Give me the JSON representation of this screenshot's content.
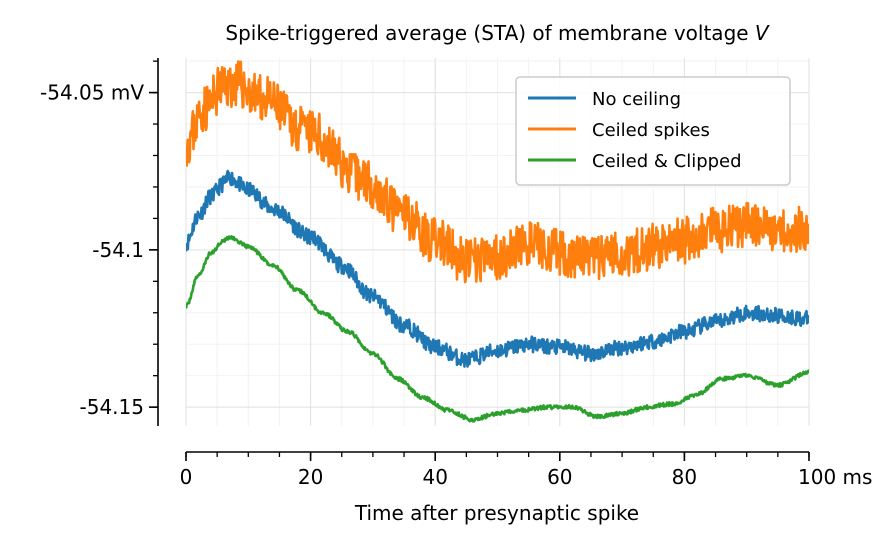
{
  "chart_data": {
    "type": "line",
    "title_main": "Spike-triggered average (STA) of membrane voltage ",
    "title_var": "V",
    "xlabel": "Time after presynaptic spike",
    "ylabel": "",
    "xlim": [
      0,
      100
    ],
    "ylim": [
      -54.156,
      -54.039
    ],
    "grid": true,
    "legend_position": "upper right",
    "x_ticks": [
      {
        "value": 0,
        "label": "0"
      },
      {
        "value": 20,
        "label": "20"
      },
      {
        "value": 40,
        "label": "40"
      },
      {
        "value": 60,
        "label": "60"
      },
      {
        "value": 80,
        "label": "80"
      },
      {
        "value": 100,
        "label": "100 ms"
      }
    ],
    "y_ticks": [
      {
        "value": -54.05,
        "label": "-54.05 mV"
      },
      {
        "value": -54.1,
        "label": "-54.1"
      },
      {
        "value": -54.15,
        "label": "-54.15"
      }
    ],
    "series": [
      {
        "name": "No ceiling",
        "color": "#1f77b4",
        "noise": 0.0025,
        "seed": 11,
        "x": [
          0,
          2,
          4,
          6,
          7,
          10,
          14,
          20,
          25,
          30,
          35,
          40,
          45,
          50,
          55,
          60,
          65,
          70,
          75,
          80,
          85,
          90,
          95,
          100
        ],
        "values": [
          -54.098,
          -54.089,
          -54.083,
          -54.079,
          -54.077,
          -54.081,
          -54.087,
          -54.096,
          -54.105,
          -54.115,
          -54.124,
          -54.131,
          -54.135,
          -54.132,
          -54.13,
          -54.131,
          -54.133,
          -54.131,
          -54.129,
          -54.126,
          -54.123,
          -54.12,
          -54.121,
          -54.122
        ]
      },
      {
        "name": "Ceiled spikes",
        "color": "#ff7f0e",
        "noise": 0.0075,
        "seed": 23,
        "x": [
          0,
          3,
          6,
          8,
          12,
          20,
          28,
          35,
          40,
          45,
          50,
          55,
          60,
          65,
          70,
          75,
          80,
          85,
          90,
          95,
          100
        ],
        "values": [
          -54.066,
          -54.055,
          -54.048,
          -54.047,
          -54.052,
          -54.063,
          -54.077,
          -54.089,
          -54.097,
          -54.104,
          -54.102,
          -54.098,
          -54.101,
          -54.103,
          -54.101,
          -54.099,
          -54.097,
          -54.094,
          -54.092,
          -54.093,
          -54.094
        ]
      },
      {
        "name": "Ceiled & Clipped",
        "color": "#2ca02c",
        "noise": 0.0006,
        "seed": 37,
        "x": [
          0,
          2,
          4,
          6,
          7,
          10,
          14,
          18,
          22,
          26,
          30,
          34,
          38,
          42,
          46,
          50,
          54,
          58,
          62,
          66,
          70,
          74,
          78,
          82,
          86,
          90,
          95,
          100
        ],
        "values": [
          -54.118,
          -54.108,
          -54.101,
          -54.097,
          -54.096,
          -54.099,
          -54.105,
          -54.113,
          -54.12,
          -54.126,
          -54.133,
          -54.141,
          -54.147,
          -54.151,
          -54.154,
          -54.152,
          -54.151,
          -54.15,
          -54.15,
          -54.153,
          -54.152,
          -54.15,
          -54.149,
          -54.146,
          -54.141,
          -54.14,
          -54.143,
          -54.139
        ]
      }
    ]
  }
}
